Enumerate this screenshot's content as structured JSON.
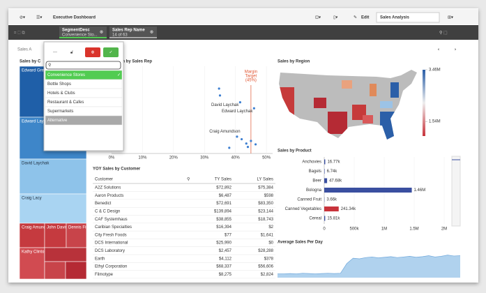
{
  "toolbar": {
    "app_title": "Executive Dashboard",
    "edit": "Edit",
    "sheet_menu": "Sales Analysis"
  },
  "selections": [
    {
      "field": "SegmentDesc",
      "value": "Convenience Sto..."
    },
    {
      "field": "Sales Rep Name",
      "value": "14 of 63"
    }
  ],
  "sheet_title": "Sales A",
  "treemap": {
    "title": "Sales by C",
    "cells": [
      "Edward Gre",
      "Edward Lay",
      "David Laychak",
      "Craig Lacy",
      "Craig Amundson",
      "John Davis",
      "Dennis Fisher",
      "Kathy Clinton"
    ]
  },
  "dropdown": {
    "items": [
      "Convenience Stores",
      "Bottle Shops",
      "Hotels & Clubs",
      "Restaurant & Cafes",
      "Supermarkets",
      "Alternative"
    ],
    "selected": 0
  },
  "scatter": {
    "type": "scatter",
    "title": "gin by Sales Rep",
    "color": "#3d7fd1",
    "x": [
      34.7,
      35,
      41.5,
      46,
      42,
      43.5,
      45,
      44,
      46.5,
      38,
      40.5
    ],
    "y": [
      74,
      66,
      58,
      51,
      15,
      10,
      13,
      6,
      9,
      5,
      18
    ],
    "point_labels": [
      null,
      null,
      "David Laychak",
      "Edward Laychak",
      "Craig Amundson",
      null,
      null,
      null,
      null,
      null,
      null
    ],
    "xlim": [
      0,
      52
    ],
    "ylim": [
      0,
      100
    ],
    "xticks": [
      {
        "value": 0,
        "label": "0%"
      },
      {
        "value": 10,
        "label": "10%"
      },
      {
        "value": 20,
        "label": "20%"
      },
      {
        "value": 30,
        "label": "30%"
      },
      {
        "value": 40,
        "label": "40%"
      },
      {
        "value": 50,
        "label": "50%"
      }
    ],
    "target": 45,
    "target_label": [
      "Margin",
      "Target",
      "(45%)"
    ]
  },
  "map": {
    "title": "Sales by Region",
    "legend": [
      {
        "value": 3460000,
        "label": "3.46M"
      },
      {
        "value": 1540000,
        "label": "1.54M"
      }
    ],
    "legend_range": [
      1000000,
      3460000
    ]
  },
  "product": {
    "type": "bar",
    "title": "Sales by Product",
    "color": "#c8333b",
    "categories": [
      "Anchovies",
      "Bagels",
      "Beer",
      "Bologna",
      "Canned Fruit",
      "Canned Vegetables",
      "Cereal"
    ],
    "values": [
      16770,
      6740,
      47680,
      1460000,
      3660,
      241340,
      15810
    ],
    "value_labels": [
      "16.77k",
      "6.74k",
      "47.68k",
      "1.46M",
      "3.66k",
      "241.34k",
      "15.81k"
    ],
    "bar_colors": [
      "#3a4fa0",
      "#3a4fa0",
      "#3a4fa0",
      "#3a4fa0",
      "#3a4fa0",
      "#c8333b",
      "#3a4fa0"
    ],
    "xlim": [
      0,
      2000000
    ],
    "xticks": [
      0,
      {
        "value": 500000,
        "label": "500k"
      },
      {
        "value": 1000000,
        "label": "1M"
      },
      {
        "value": 1500000,
        "label": "1.5M"
      },
      {
        "value": 2000000,
        "label": "2M"
      }
    ]
  },
  "table": {
    "title": "YOY Sales by Customer",
    "columns": [
      "Customer",
      "TY Sales",
      "LY Sales"
    ],
    "rows": [
      [
        "A2Z Solutions",
        "$72,892",
        "$75,384"
      ],
      [
        "Aaron Products",
        "$6,487",
        "$598"
      ],
      [
        "Benedict",
        "$72,691",
        "$83,350"
      ],
      [
        "C & C Design",
        "$139,894",
        "$23,144"
      ],
      [
        "CAF Systemhaus",
        "$38,855",
        "$18,743"
      ],
      [
        "Caribian Specialties",
        "$16,394",
        "$2"
      ],
      [
        "City Fresh Foods",
        "$77",
        "$1,641"
      ],
      [
        "DCS International",
        "$25,990",
        "$0"
      ],
      [
        "DCS Laboratory",
        "$2,457",
        "$28,288"
      ],
      [
        "Earth",
        "$4,112",
        "$378"
      ],
      [
        "Ethyl Corporation",
        "$68,337",
        "$56,606"
      ],
      [
        "Filmotype",
        "$8,275",
        "$2,824"
      ]
    ]
  },
  "avg": {
    "type": "area",
    "title": "Average Sales Per Day",
    "color": "#9cc7ea",
    "ylim": [
      0,
      100
    ],
    "values": [
      12,
      12,
      13,
      12,
      14,
      13,
      12,
      13,
      14,
      13,
      14,
      45,
      62,
      60,
      64,
      66,
      63,
      65,
      67,
      64,
      66,
      68,
      65,
      67,
      70,
      66,
      68,
      72,
      69,
      70
    ]
  }
}
